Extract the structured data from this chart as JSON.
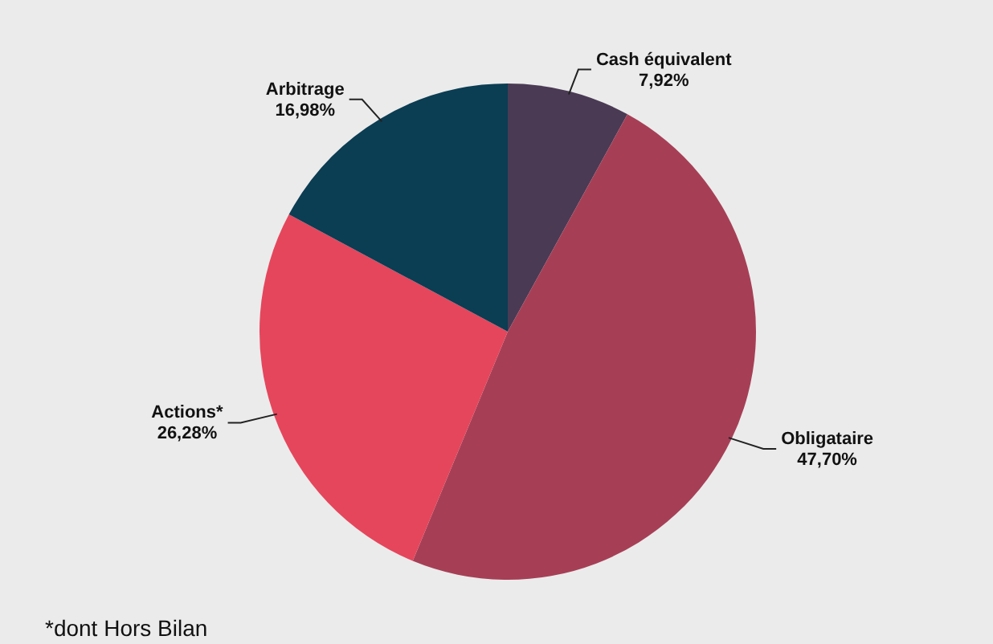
{
  "chart_data": {
    "type": "pie",
    "categories": [
      "Cash équivalent",
      "Obligataire",
      "Actions*",
      "Arbitrage"
    ],
    "values": [
      7.92,
      47.7,
      26.28,
      16.98
    ],
    "value_labels": [
      "7,92%",
      "47,70%",
      "26,28%",
      "16,98%"
    ],
    "colors": [
      "#4a3a54",
      "#a63f56",
      "#e5465c",
      "#0b3d53"
    ],
    "legend": false,
    "annotations": [
      "*dont Hors Bilan"
    ]
  }
}
